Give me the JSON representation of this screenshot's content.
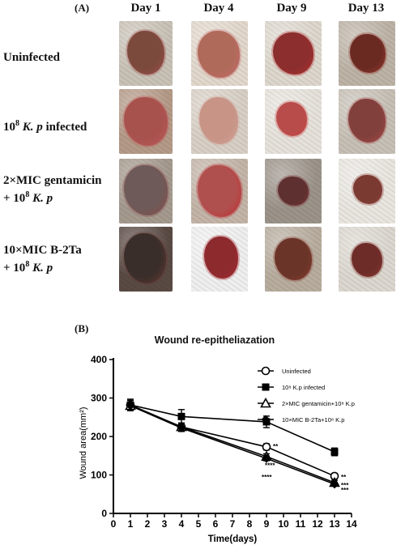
{
  "panel_a": {
    "label": "(A)",
    "days": [
      "Day 1",
      "Day 4",
      "Day 9",
      "Day 13"
    ],
    "rows": [
      {
        "line1_pre": "Uninfected",
        "line1_sup": "",
        "line1_post": "",
        "line1_em": "",
        "line2_pre": "",
        "line2_em": ""
      },
      {
        "line1_pre": "10",
        "line1_sup": "8",
        "line1_post": " ",
        "line1_em": "K. p",
        "line1_tail": " infected",
        "line2_pre": "",
        "line2_em": ""
      },
      {
        "line1_pre": "2×MIC gentamicin",
        "line1_sup": "",
        "line1_post": "",
        "line1_em": "",
        "line2_pre": "+ 10",
        "line2_sup": "8",
        "line2_em": "K. p"
      },
      {
        "line1_pre": "10×MIC B-2Ta",
        "line1_sup": "",
        "line1_post": "",
        "line1_em": "",
        "line2_pre": "+ 10",
        "line2_sup": "8",
        "line2_em": "K. p"
      }
    ]
  },
  "panel_b": {
    "label": "(B)"
  },
  "chart_data": {
    "type": "line",
    "title": "Wound re-epitheliazation",
    "xlabel": "Time(days)",
    "ylabel": "Wound area(mm²)",
    "xlim": [
      0,
      14
    ],
    "ylim": [
      0,
      400
    ],
    "x_ticks": [
      0,
      1,
      2,
      3,
      4,
      5,
      6,
      7,
      8,
      9,
      10,
      11,
      12,
      13,
      14
    ],
    "y_ticks": [
      0,
      100,
      200,
      300,
      400
    ],
    "x": [
      1,
      4,
      9,
      13
    ],
    "series": [
      {
        "name": "Uninfected",
        "marker": "circle",
        "values": [
          282,
          225,
          173,
          97
        ],
        "errors": [
          12,
          10,
          8,
          7
        ],
        "sig": [
          "",
          "",
          "**",
          "**"
        ]
      },
      {
        "name": "10⁸ K.p infected",
        "marker": "square",
        "values": [
          282,
          252,
          238,
          160
        ],
        "errors": [
          15,
          18,
          15,
          10
        ],
        "sig": [
          "",
          "",
          "",
          ""
        ]
      },
      {
        "name": "2×MIC gentamicin+10⁸ K.p",
        "marker": "triangle",
        "values": [
          280,
          225,
          148,
          80
        ],
        "errors": [
          10,
          10,
          7,
          6
        ],
        "sig": [
          "",
          "",
          "****",
          "***"
        ]
      },
      {
        "name": "10×MIC B-2Ta+10⁸ K.p",
        "marker": "diamond",
        "values": [
          280,
          222,
          143,
          76
        ],
        "errors": [
          10,
          9,
          6,
          5
        ],
        "sig": [
          "",
          "",
          "****",
          "***"
        ]
      }
    ],
    "legend_position": "top-right"
  }
}
